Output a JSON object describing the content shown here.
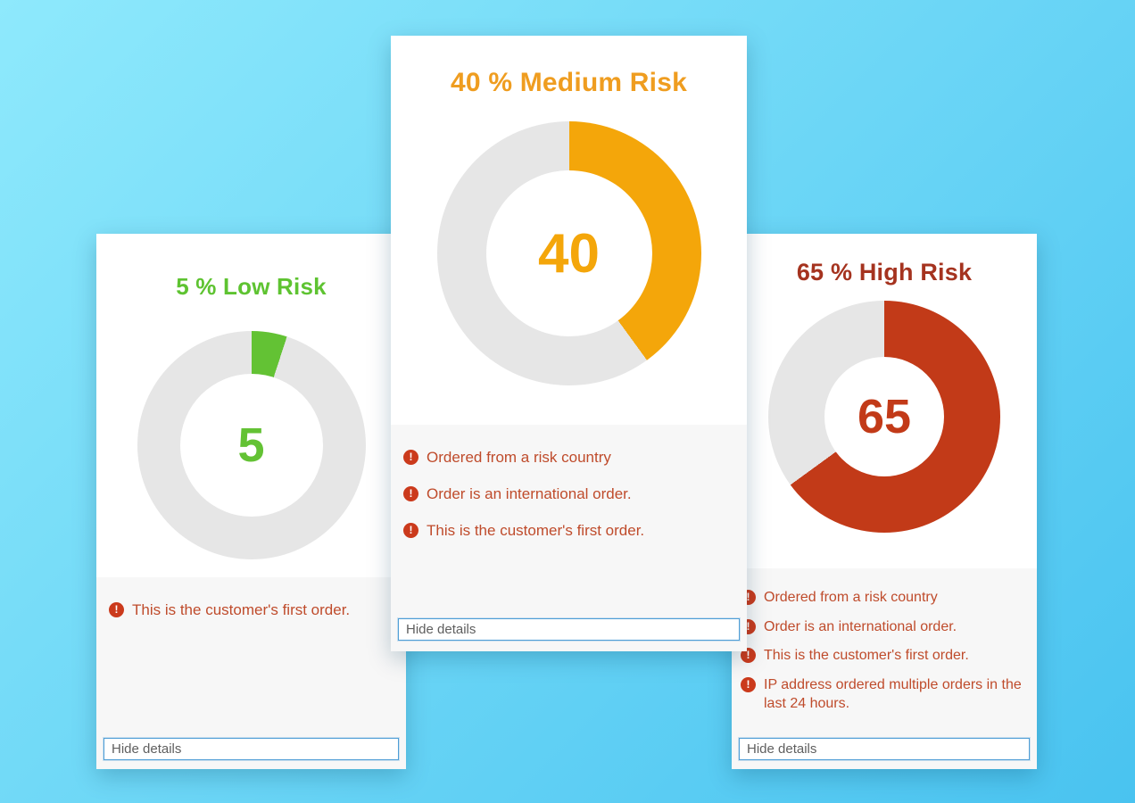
{
  "theme": {
    "background_gradient": [
      "#8ee9fc",
      "#49c3f0"
    ],
    "card_background": "#ffffff",
    "details_background": "#f7f7f7",
    "track_color": "#e6e6e6",
    "warning_text": "#bf4b2b",
    "warning_icon": "#cb3a1c",
    "warning_glyph": "!",
    "input_border": "#4f9ed6",
    "input_text": "#5f5f5f"
  },
  "cards": [
    {
      "id": "low",
      "title": "5 % Low Risk",
      "title_color": "#5ec331",
      "percent": 5,
      "value_label": "5",
      "color": "#63c234",
      "warnings": [
        "This is the customer's first order."
      ],
      "hide_details_label": "Hide details"
    },
    {
      "id": "medium",
      "title": "40 % Medium Risk",
      "title_color": "#ef9d20",
      "percent": 40,
      "value_label": "40",
      "color": "#f4a60a",
      "warnings": [
        "Ordered from a risk country",
        "Order is an international order.",
        "This is the customer's first order."
      ],
      "hide_details_label": "Hide details"
    },
    {
      "id": "high",
      "title": "65 % High Risk",
      "title_color": "#a5331f",
      "percent": 65,
      "value_label": "65",
      "color": "#c23a18",
      "warnings": [
        "Ordered from a risk country",
        "Order is an international order.",
        "This is the customer's first order.",
        "IP address ordered multiple orders in the last 24 hours."
      ],
      "hide_details_label": "Hide details"
    }
  ],
  "chart_data": [
    {
      "type": "pie",
      "variant": "donut",
      "title": "5 % Low Risk",
      "labels": [
        "risk score",
        "remainder"
      ],
      "values": [
        5,
        95
      ],
      "colors": [
        "#63c234",
        "#e6e6e6"
      ],
      "center_label": "5",
      "start_angle_deg": 0,
      "direction": "clockwise"
    },
    {
      "type": "pie",
      "variant": "donut",
      "title": "40 % Medium Risk",
      "labels": [
        "risk score",
        "remainder"
      ],
      "values": [
        40,
        60
      ],
      "colors": [
        "#f4a60a",
        "#e6e6e6"
      ],
      "center_label": "40",
      "start_angle_deg": 0,
      "direction": "clockwise"
    },
    {
      "type": "pie",
      "variant": "donut",
      "title": "65 % High Risk",
      "labels": [
        "risk score",
        "remainder"
      ],
      "values": [
        65,
        35
      ],
      "colors": [
        "#c23a18",
        "#e6e6e6"
      ],
      "center_label": "65",
      "start_angle_deg": 0,
      "direction": "clockwise"
    }
  ]
}
